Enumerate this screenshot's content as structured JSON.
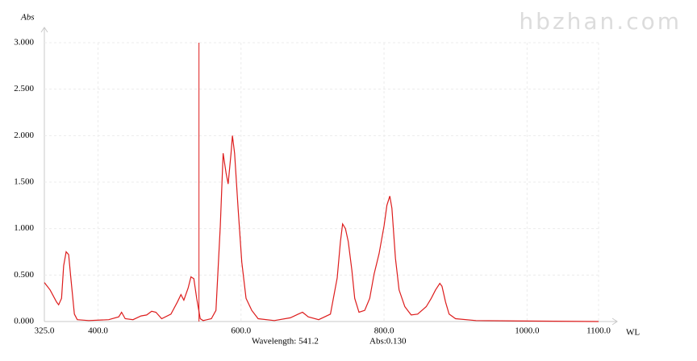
{
  "chart_data": {
    "type": "line",
    "watermark": "hbzhan.com",
    "y_label": "Abs",
    "x_label": "WL",
    "x": [
      325,
      333,
      342,
      345,
      349,
      352,
      355.5,
      359,
      362,
      367,
      371,
      387,
      415,
      429,
      433,
      438,
      449,
      460,
      468,
      475,
      481,
      489,
      502,
      511,
      516,
      520,
      526,
      530,
      534,
      538,
      543,
      547,
      558.5,
      565,
      571,
      575,
      579,
      582,
      586,
      588,
      591,
      596,
      601,
      607,
      615,
      624,
      646.5,
      669,
      680,
      686,
      694,
      708.5,
      725,
      734.5,
      739,
      742,
      746,
      750,
      755,
      759,
      765,
      773,
      780,
      786,
      793,
      800,
      804,
      808,
      811,
      816,
      821,
      829,
      838,
      847,
      859,
      866,
      872,
      878,
      881,
      886,
      891,
      900,
      928.5,
      996,
      1100
    ],
    "series": [
      {
        "color": "#dd1c1c",
        "values": [
          0.42,
          0.34,
          0.21,
          0.18,
          0.25,
          0.6,
          0.75,
          0.72,
          0.47,
          0.08,
          0.02,
          0.01,
          0.02,
          0.05,
          0.1,
          0.03,
          0.02,
          0.06,
          0.07,
          0.11,
          0.1,
          0.03,
          0.08,
          0.21,
          0.29,
          0.23,
          0.36,
          0.48,
          0.46,
          0.25,
          0.03,
          0.01,
          0.03,
          0.12,
          1.03,
          1.81,
          1.6,
          1.48,
          1.81,
          2.0,
          1.81,
          1.21,
          0.64,
          0.25,
          0.12,
          0.03,
          0.01,
          0.04,
          0.08,
          0.1,
          0.05,
          0.02,
          0.08,
          0.47,
          0.86,
          1.05,
          1.0,
          0.86,
          0.55,
          0.25,
          0.1,
          0.12,
          0.25,
          0.51,
          0.73,
          1.03,
          1.25,
          1.35,
          1.22,
          0.68,
          0.34,
          0.16,
          0.07,
          0.08,
          0.16,
          0.25,
          0.34,
          0.41,
          0.38,
          0.21,
          0.08,
          0.03,
          0.01,
          0.005,
          0.0
        ]
      }
    ],
    "xlim": [
      325,
      1100
    ],
    "xticks": [
      {
        "value": 325,
        "label": "325.0"
      },
      {
        "value": 400,
        "label": "400.0"
      },
      {
        "value": 600,
        "label": "600.0"
      },
      {
        "value": 800,
        "label": "800.0"
      },
      {
        "value": 1000,
        "label": "1000.0"
      },
      {
        "value": 1100,
        "label": "1100.0"
      }
    ],
    "ylim": [
      0,
      3
    ],
    "yticks": [
      {
        "value": 0,
        "label": "0.000"
      },
      {
        "value": 0.5,
        "label": "0.500"
      },
      {
        "value": 1,
        "label": "1.000"
      },
      {
        "value": 1.5,
        "label": "1.500"
      },
      {
        "value": 2,
        "label": "2.000"
      },
      {
        "value": 2.5,
        "label": "2.500"
      },
      {
        "value": 3,
        "label": "3.000"
      }
    ],
    "grid": true,
    "cursor": {
      "x": 541.2,
      "color": "#dd1c1c",
      "label": "Wavelength: 541.2",
      "abs_label": "Abs:0.130"
    }
  }
}
